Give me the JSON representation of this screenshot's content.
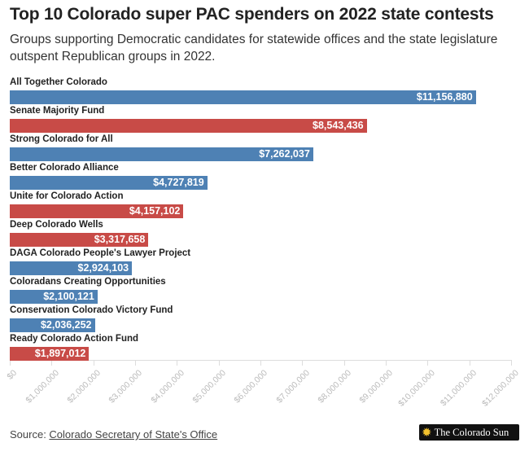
{
  "chart_data": {
    "type": "bar",
    "orientation": "horizontal",
    "title": "Top 10 Colorado super PAC spenders on 2022 state contests",
    "subtitle": "Groups supporting Democratic candidates for statewide offices and the state legislature outspent Republican groups in 2022.",
    "categories": [
      "All Together Colorado",
      "Senate Majority Fund",
      "Strong Colorado for All",
      "Better Colorado Alliance",
      "Unite for Colorado Action",
      "Deep Colorado Wells",
      "DAGA Colorado People's Lawyer Project",
      "Coloradans Creating Opportunities",
      "Conservation Colorado Victory Fund",
      "Ready Colorado Action Fund"
    ],
    "values": [
      11156880,
      8543436,
      7262037,
      4727819,
      4157102,
      3317658,
      2924103,
      2100121,
      2036252,
      1897012
    ],
    "value_labels": [
      "$11,156,880",
      "$8,543,436",
      "$7,262,037",
      "$4,727,819",
      "$4,157,102",
      "$3,317,658",
      "$2,924,103",
      "$2,100,121",
      "$2,036,252",
      "$1,897,012"
    ],
    "party": [
      "D",
      "R",
      "D",
      "D",
      "R",
      "R",
      "D",
      "D",
      "D",
      "R"
    ],
    "colors": {
      "D": "#4e81b4",
      "R": "#c84b47"
    },
    "xlim": [
      0,
      12000000
    ],
    "xticks": [
      0,
      1000000,
      2000000,
      3000000,
      4000000,
      5000000,
      6000000,
      7000000,
      8000000,
      9000000,
      10000000,
      11000000,
      12000000
    ],
    "xtick_labels": [
      "$0",
      "$1,000,000",
      "$2,000,000",
      "$3,000,000",
      "$4,000,000",
      "$5,000,000",
      "$6,000,000",
      "$7,000,000",
      "$8,000,000",
      "$9,000,000",
      "$10,000,000",
      "$11,000,000",
      "$12,000,000"
    ],
    "xlabel": "",
    "ylabel": "",
    "grid": false
  },
  "source": {
    "prefix": "Source: ",
    "link": "Colorado Secretary of State's Office"
  },
  "logo": {
    "text": "The Colorado Sun"
  }
}
